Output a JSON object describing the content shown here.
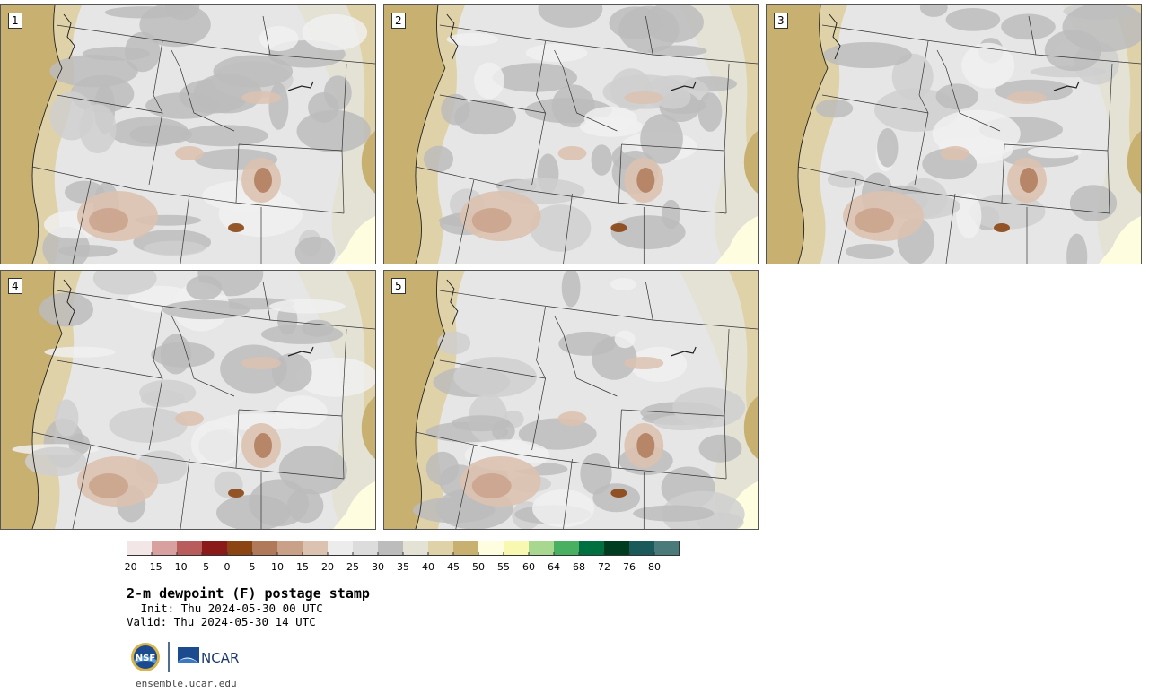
{
  "figure": {
    "title": "2-m dewpoint (F) postage stamp",
    "init": " Init: Thu 2024-05-30 00 UTC",
    "valid": "Valid: Thu 2024-05-30 14 UTC",
    "url": "ensemble.ucar.edu",
    "logos": [
      "NSF",
      "NCAR"
    ]
  },
  "members": [
    {
      "label": "1"
    },
    {
      "label": "2"
    },
    {
      "label": "3"
    },
    {
      "label": "4"
    },
    {
      "label": "5"
    }
  ],
  "colorbar": {
    "units": "F",
    "tick_labels": [
      "−20",
      "−15",
      "−10",
      "−5",
      "0",
      "5",
      "10",
      "15",
      "20",
      "25",
      "30",
      "35",
      "40",
      "45",
      "50",
      "55",
      "60",
      "64",
      "68",
      "72",
      "76",
      "80"
    ],
    "colors": [
      "#f2e6e6",
      "#d9a0a0",
      "#b85c5c",
      "#8b1a1a",
      "#8b4513",
      "#b07a5a",
      "#c9a088",
      "#dcc2b0",
      "#ececec",
      "#dcdcdc",
      "#bcbcbc",
      "#e4e2d4",
      "#e0d2a8",
      "#c8b070",
      "#fffde0",
      "#f8f8b0",
      "#a8d890",
      "#48b060",
      "#007040",
      "#003c20",
      "#1a5a5a",
      "#4a7a7a"
    ]
  }
}
